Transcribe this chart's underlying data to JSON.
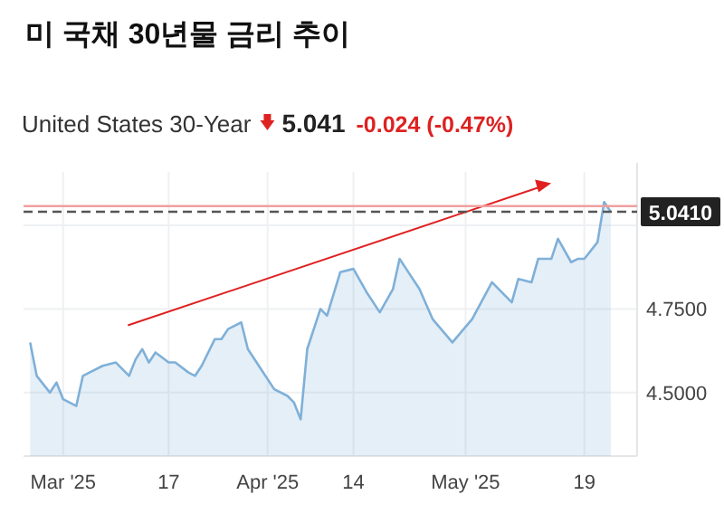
{
  "chart_data": {
    "type": "area",
    "title": "미 국채 30년물 금리 추이",
    "subtitle": "United States 30-Year",
    "annotations": [
      "5.041",
      "-0.024 (-0.47%)"
    ],
    "x": [
      "2025-02-24",
      "2025-02-25",
      "2025-02-27",
      "2025-02-28",
      "2025-03-01",
      "2025-03-03",
      "2025-03-04",
      "2025-03-05",
      "2025-03-07",
      "2025-03-09",
      "2025-03-11",
      "2025-03-12",
      "2025-03-13",
      "2025-03-14",
      "2025-03-15",
      "2025-03-17",
      "2025-03-18",
      "2025-03-20",
      "2025-03-21",
      "2025-03-22",
      "2025-03-24",
      "2025-03-25",
      "2025-03-26",
      "2025-03-28",
      "2025-03-29",
      "2025-03-31",
      "2025-04-02",
      "2025-04-04",
      "2025-04-05",
      "2025-04-06",
      "2025-04-07",
      "2025-04-09",
      "2025-04-10",
      "2025-04-12",
      "2025-04-14",
      "2025-04-16",
      "2025-04-18",
      "2025-04-20",
      "2025-04-21",
      "2025-04-22",
      "2025-04-24",
      "2025-04-26",
      "2025-04-29",
      "2025-05-02",
      "2025-05-05",
      "2025-05-08",
      "2025-05-09",
      "2025-05-11",
      "2025-05-12",
      "2025-05-14",
      "2025-05-15",
      "2025-05-17",
      "2025-05-18",
      "2025-05-19",
      "2025-05-21",
      "2025-05-22",
      "2025-05-23"
    ],
    "series": [
      {
        "color": "#7fb0d8",
        "values": [
          4.65,
          4.55,
          4.5,
          4.53,
          4.48,
          4.46,
          4.55,
          4.56,
          4.58,
          4.59,
          4.55,
          4.6,
          4.63,
          4.59,
          4.62,
          4.59,
          4.59,
          4.56,
          4.55,
          4.58,
          4.66,
          4.66,
          4.69,
          4.71,
          4.63,
          4.57,
          4.51,
          4.49,
          4.47,
          4.42,
          4.63,
          4.75,
          4.73,
          4.86,
          4.87,
          4.8,
          4.74,
          4.81,
          4.9,
          4.87,
          4.81,
          4.72,
          4.65,
          4.72,
          4.83,
          4.77,
          4.84,
          4.83,
          4.9,
          4.9,
          4.96,
          4.89,
          4.9,
          4.9,
          4.95,
          5.07,
          5.041
        ]
      }
    ],
    "xlim": [
      "2025-02-23",
      "2025-05-27"
    ],
    "xticks": [
      {
        "value": "2025-03-01",
        "label": "Mar '25"
      },
      {
        "value": "2025-03-17",
        "label": "17"
      },
      {
        "value": "2025-04-01",
        "label": "Apr '25"
      },
      {
        "value": "2025-04-14",
        "label": "14"
      },
      {
        "value": "2025-05-01",
        "label": "May '25"
      },
      {
        "value": "2025-05-19",
        "label": "19"
      }
    ],
    "ylim": [
      4.31,
      5.16
    ],
    "yticks": [
      {
        "value": 4.5,
        "label": "4.5000"
      },
      {
        "value": 4.75,
        "label": "4.7500"
      },
      {
        "value": 5,
        "label": null
      }
    ],
    "ref_lines": [
      {
        "axis": "y",
        "value": 5.041,
        "label": "5.0410",
        "color": "#555555",
        "line_style": "dashed"
      },
      {
        "axis": "y",
        "value": 5.058,
        "color": "#f0a0a0",
        "line_style": "solid"
      }
    ],
    "grid": true
  }
}
